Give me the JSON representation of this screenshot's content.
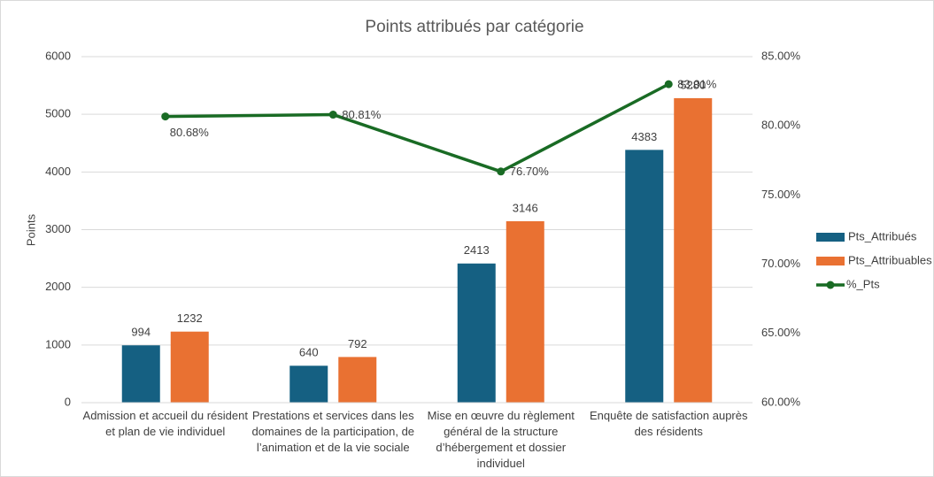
{
  "chart_data": {
    "type": "bar_line",
    "title": "Points attribués par catégorie",
    "ylabel": "Points",
    "categories": [
      "Admission et accueil du résident et plan de vie individuel",
      "Prestations et services dans les domaines de la participation, de l’animation et de la vie sociale",
      "Mise en œuvre du règlement général de la structure d’hébergement et dossier individuel",
      "Enquête de satisfaction auprès des résidents"
    ],
    "series": [
      {
        "name": "Pts_Attribués",
        "type": "bar",
        "color": "#156082",
        "values": [
          994,
          640,
          2413,
          4383
        ]
      },
      {
        "name": "Pts_Attribuables",
        "type": "bar",
        "color": "#e97132",
        "values": [
          1232,
          792,
          3146,
          5280
        ]
      },
      {
        "name": "%_Pts",
        "type": "line",
        "axis": "y2",
        "color": "#196b24",
        "values": [
          80.68,
          80.81,
          76.7,
          83.01
        ],
        "value_labels": [
          "80.68%",
          "80.81%",
          "76.70%",
          "83.01%"
        ]
      }
    ],
    "ylim": [
      0,
      6000
    ],
    "yticks": [
      0,
      1000,
      2000,
      3000,
      4000,
      5000,
      6000
    ],
    "y2lim": [
      60,
      85
    ],
    "y2ticks": [
      {
        "value": 60,
        "label": "60.00%"
      },
      {
        "value": 65,
        "label": "65.00%"
      },
      {
        "value": 70,
        "label": "70.00%"
      },
      {
        "value": 75,
        "label": "75.00%"
      },
      {
        "value": 80,
        "label": "80.00%"
      },
      {
        "value": 85,
        "label": "85.00%"
      }
    ],
    "grid": true,
    "legend": "right"
  }
}
